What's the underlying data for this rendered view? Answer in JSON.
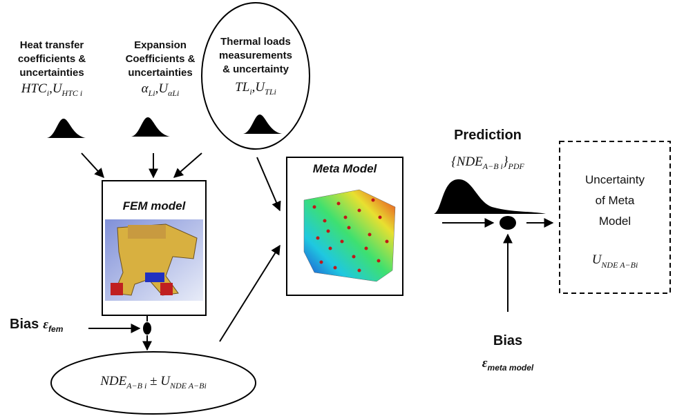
{
  "inputs": [
    {
      "label_lines": [
        "Heat transfer",
        "coefficients &",
        "uncertainties"
      ],
      "formula": [
        "HTC",
        "i",
        ",U",
        "HTC i"
      ]
    },
    {
      "label_lines": [
        "Expansion",
        "Coefficients &",
        "uncertainties"
      ],
      "formula": [
        "α",
        "Li",
        ",U",
        "αLi"
      ]
    },
    {
      "label_lines": [
        "Thermal loads",
        "measurements",
        "& uncertainty"
      ],
      "formula": [
        "TL",
        "i",
        ",U",
        "TLi"
      ]
    }
  ],
  "fem_model": {
    "title": "FEM model"
  },
  "meta_model": {
    "title": "Meta Model"
  },
  "prediction": {
    "title": "Prediction",
    "formula": [
      "{NDE",
      "A−B i",
      "}",
      "PDF"
    ]
  },
  "uncertainty": {
    "lines": [
      "Uncertainty",
      "of Meta",
      "Model"
    ],
    "formula": [
      "U",
      "NDE A−Bi"
    ]
  },
  "bias_fem": {
    "label": "Bias",
    "symbol": [
      "ε",
      "fem"
    ]
  },
  "bias_meta": {
    "label": "Bias",
    "symbol": [
      "ε",
      "meta model"
    ]
  },
  "result": {
    "formula": [
      "NDE",
      "A−B i",
      " ± U",
      "NDE A−Bi"
    ]
  }
}
